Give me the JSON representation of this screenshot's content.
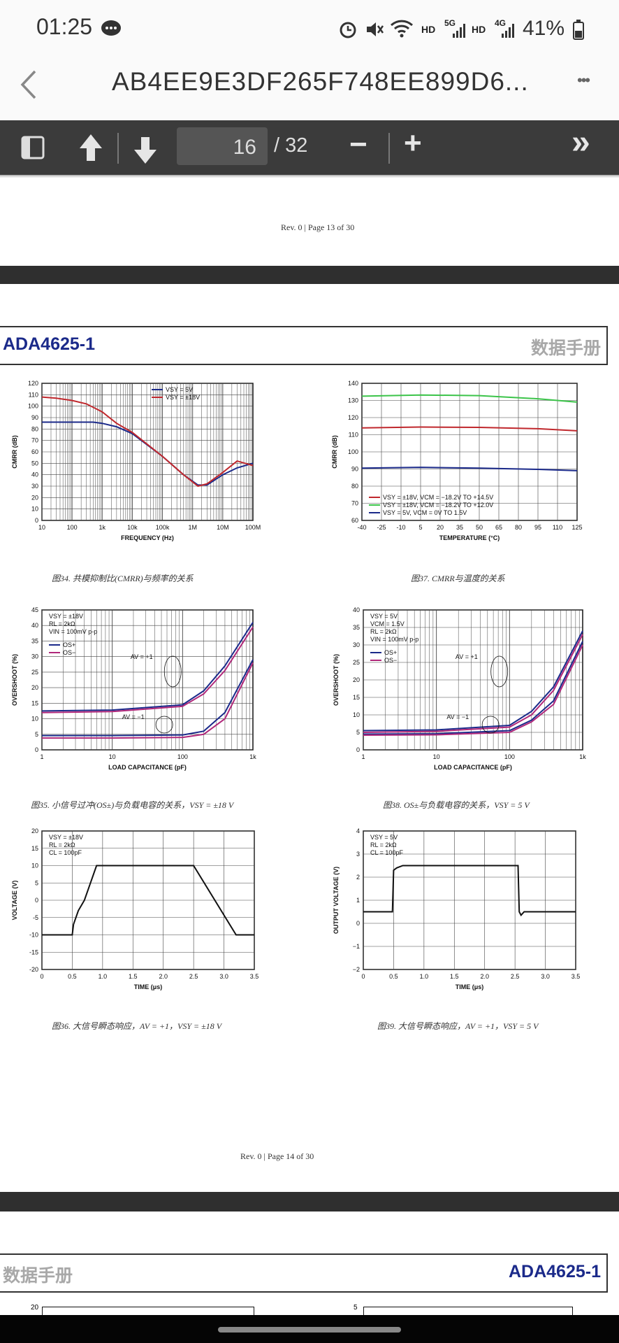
{
  "status_bar": {
    "time": "01:25",
    "hd1": "HD",
    "sig1": "5G",
    "hd2": "HD",
    "sig2": "4G",
    "battery": "41%"
  },
  "app_bar": {
    "title": "AB4EE9E3DF265F748EE899D6...",
    "more": "•••"
  },
  "toolbar": {
    "current_page": "16",
    "total_pages": "/ 32",
    "minus": "−",
    "plus": "+",
    "forward": "»"
  },
  "page_prev": {
    "footer": "Rev. 0 | Page 13 of 30"
  },
  "page_main": {
    "header_left": "ADA4625-1",
    "header_right": "数据手册",
    "footer": "Rev. 0 | Page 14 of 30",
    "captions": {
      "fig34": "图34. 共模抑制比(CMRR)与频率的关系",
      "fig37": "图37. CMRR与温度的关系",
      "fig35": "图35. 小信号过冲(OS±)与负载电容的关系，VSY = ±18 V",
      "fig38": "图38. OS±与负载电容的关系，VSY = 5 V",
      "fig36": "图36. 大信号瞬态响应，AV = +1，VSY = ±18 V",
      "fig39": "图39. 大信号瞬态响应，AV = +1，VSY = 5 V"
    }
  },
  "page_next": {
    "header_left": "数据手册",
    "header_right": "ADA4625-1",
    "y_top_left": "20",
    "y_top_right": "5"
  },
  "chart_data": [
    {
      "id": "fig34",
      "type": "line",
      "xlabel": "FREQUENCY (Hz)",
      "ylabel": "CMRR (dB)",
      "xscale": "log",
      "xlim": [
        10,
        100000000
      ],
      "ylim": [
        0,
        120
      ],
      "xticks": [
        "10",
        "100",
        "1k",
        "10k",
        "100k",
        "1M",
        "10M",
        "100M"
      ],
      "yticks": [
        "0",
        "10",
        "20",
        "30",
        "40",
        "50",
        "60",
        "70",
        "80",
        "90",
        "100",
        "110",
        "120"
      ],
      "legend": [
        "VSY = 5V",
        "VSY = ±18V"
      ],
      "series": [
        {
          "name": "VSY = 5V",
          "color": "#1b2a8a",
          "x": [
            10,
            100,
            500,
            1000,
            3000,
            10000,
            100000,
            500000,
            1500000,
            3000000,
            10000000,
            30000000,
            100000000
          ],
          "y": [
            86,
            86,
            86,
            85,
            82,
            76,
            56,
            40,
            31,
            31,
            40,
            46,
            50
          ]
        },
        {
          "name": "VSY = ±18V",
          "color": "#c0282d",
          "x": [
            10,
            30,
            100,
            300,
            1000,
            3000,
            10000,
            100000,
            500000,
            1500000,
            3000000,
            10000000,
            30000000,
            100000000
          ],
          "y": [
            108,
            107,
            105,
            102,
            95,
            85,
            77,
            56,
            40,
            30,
            32,
            42,
            52,
            48
          ]
        }
      ]
    },
    {
      "id": "fig37",
      "type": "line",
      "xlabel": "TEMPERATURE (°C)",
      "ylabel": "CMRR (dB)",
      "xlim": [
        -40,
        125
      ],
      "ylim": [
        60,
        140
      ],
      "xticks": [
        "-40",
        "-25",
        "-10",
        "5",
        "20",
        "35",
        "50",
        "65",
        "80",
        "95",
        "110",
        "125"
      ],
      "yticks": [
        "60",
        "70",
        "80",
        "90",
        "100",
        "110",
        "120",
        "130",
        "140"
      ],
      "legend": [
        "VSY = ±18V, VCM = −18.2V TO +14.5V",
        "VSY = ±18V, VCM = −18.2V TO +12.0V",
        "VSY = 5V, VCM = 0V TO 1.5V"
      ],
      "series": [
        {
          "name": "red",
          "color": "#c0282d",
          "x": [
            -40,
            5,
            50,
            95,
            125
          ],
          "y": [
            114,
            114.5,
            114.3,
            113.5,
            112.3
          ]
        },
        {
          "name": "green",
          "color": "#3cc44a",
          "x": [
            -40,
            5,
            50,
            95,
            125
          ],
          "y": [
            132.5,
            133.2,
            132.8,
            131,
            129
          ]
        },
        {
          "name": "blue",
          "color": "#1b2a8a",
          "x": [
            -40,
            5,
            50,
            95,
            125
          ],
          "y": [
            90.5,
            91,
            90.5,
            89.8,
            89
          ]
        }
      ]
    },
    {
      "id": "fig35",
      "type": "line",
      "xlabel": "LOAD CAPACITANCE (pF)",
      "ylabel": "OVERSHOOT (%)",
      "xscale": "log",
      "xlim": [
        1,
        1000
      ],
      "ylim": [
        0,
        45
      ],
      "xticks": [
        "1",
        "10",
        "100",
        "1k"
      ],
      "yticks": [
        "0",
        "5",
        "10",
        "15",
        "20",
        "25",
        "30",
        "35",
        "40",
        "45"
      ],
      "annotations": [
        "VSY = ±18V",
        "RL = 2kΩ",
        "VIN = 100mV p-p",
        "AV = +1",
        "AV = −1"
      ],
      "legend": [
        "OS+",
        "OS−"
      ],
      "series": [
        {
          "name": "OS+ AV=+1",
          "color": "#1b2a8a",
          "x": [
            1,
            10,
            100,
            200,
            400,
            1000
          ],
          "y": [
            12.5,
            12.8,
            14.5,
            19,
            27,
            41
          ]
        },
        {
          "name": "OS− AV=+1",
          "color": "#b0287a",
          "x": [
            1,
            10,
            100,
            200,
            400,
            1000
          ],
          "y": [
            12,
            12.3,
            14,
            18,
            25.5,
            39.5
          ]
        },
        {
          "name": "OS+ AV=−1",
          "color": "#1b2a8a",
          "x": [
            1,
            10,
            100,
            200,
            400,
            1000
          ],
          "y": [
            4.6,
            4.6,
            4.8,
            6,
            12,
            29
          ]
        },
        {
          "name": "OS− AV=−1",
          "color": "#b0287a",
          "x": [
            1,
            10,
            100,
            200,
            400,
            1000
          ],
          "y": [
            3.8,
            3.8,
            4,
            5,
            10,
            28
          ]
        }
      ]
    },
    {
      "id": "fig38",
      "type": "line",
      "xlabel": "LOAD CAPACITANCE (pF)",
      "ylabel": "OVERSHOOT (%)",
      "xscale": "log",
      "xlim": [
        1,
        1000
      ],
      "ylim": [
        0,
        40
      ],
      "xticks": [
        "1",
        "10",
        "100",
        "1k"
      ],
      "yticks": [
        "0",
        "5",
        "10",
        "15",
        "20",
        "25",
        "30",
        "35",
        "40"
      ],
      "annotations": [
        "VSY = 5V",
        "VCM = 1.5V",
        "RL = 2kΩ",
        "VIN = 100mV p-p",
        "AV = +1",
        "AV = −1"
      ],
      "legend": [
        "OS+",
        "OS−"
      ],
      "series": [
        {
          "name": "OS+ AV=+1",
          "color": "#1b2a8a",
          "x": [
            1,
            10,
            100,
            200,
            400,
            1000
          ],
          "y": [
            5.5,
            5.7,
            7,
            11,
            18,
            34
          ]
        },
        {
          "name": "OS− AV=+1",
          "color": "#b0287a",
          "x": [
            1,
            10,
            100,
            200,
            400,
            1000
          ],
          "y": [
            5,
            5.3,
            6.5,
            10,
            17,
            33
          ]
        },
        {
          "name": "OS+ AV=−1",
          "color": "#1b2a8a",
          "x": [
            1,
            10,
            100,
            200,
            400,
            1000
          ],
          "y": [
            4.5,
            4.6,
            5.5,
            8.5,
            14,
            31
          ]
        },
        {
          "name": "OS− AV=−1",
          "color": "#b0287a",
          "x": [
            1,
            10,
            100,
            200,
            400,
            1000
          ],
          "y": [
            4.2,
            4.3,
            5,
            8,
            13,
            30
          ]
        }
      ]
    },
    {
      "id": "fig36",
      "type": "line",
      "xlabel": "TIME (μs)",
      "ylabel": "VOLTAGE (V)",
      "xlim": [
        0,
        3.5
      ],
      "ylim": [
        -20,
        20
      ],
      "xticks": [
        "0",
        "0.5",
        "1.0",
        "1.5",
        "2.0",
        "2.5",
        "3.0",
        "3.5"
      ],
      "yticks": [
        "-20",
        "-15",
        "-10",
        "-5",
        "0",
        "5",
        "10",
        "15",
        "20"
      ],
      "annotations": [
        "VSY = ±18V",
        "RL = 2kΩ",
        "CL = 100pF"
      ],
      "series": [
        {
          "name": "output",
          "color": "#111",
          "x": [
            0,
            0.5,
            0.52,
            0.6,
            0.7,
            0.9,
            2.5,
            3.2,
            3.5
          ],
          "y": [
            -10,
            -10,
            -7,
            -3,
            0,
            10,
            10,
            -10,
            -10
          ]
        }
      ]
    },
    {
      "id": "fig39",
      "type": "line",
      "xlabel": "TIME (μs)",
      "ylabel": "OUTPUT VOLTAGE (V)",
      "xlim": [
        0,
        3.5
      ],
      "ylim": [
        -2,
        4
      ],
      "xticks": [
        "0",
        "0.5",
        "1.0",
        "1.5",
        "2.0",
        "2.5",
        "3.0",
        "3.5"
      ],
      "yticks": [
        "−2",
        "−1",
        "0",
        "1",
        "2",
        "3",
        "4"
      ],
      "annotations": [
        "VSY = 5V",
        "RL = 2kΩ",
        "CL = 100pF"
      ],
      "series": [
        {
          "name": "output",
          "color": "#111",
          "x": [
            0,
            0.48,
            0.5,
            0.55,
            0.65,
            2.55,
            2.57,
            2.6,
            2.65,
            3.5
          ],
          "y": [
            0.5,
            0.5,
            2.3,
            2.4,
            2.5,
            2.5,
            0.5,
            0.35,
            0.5,
            0.5
          ]
        }
      ]
    }
  ]
}
